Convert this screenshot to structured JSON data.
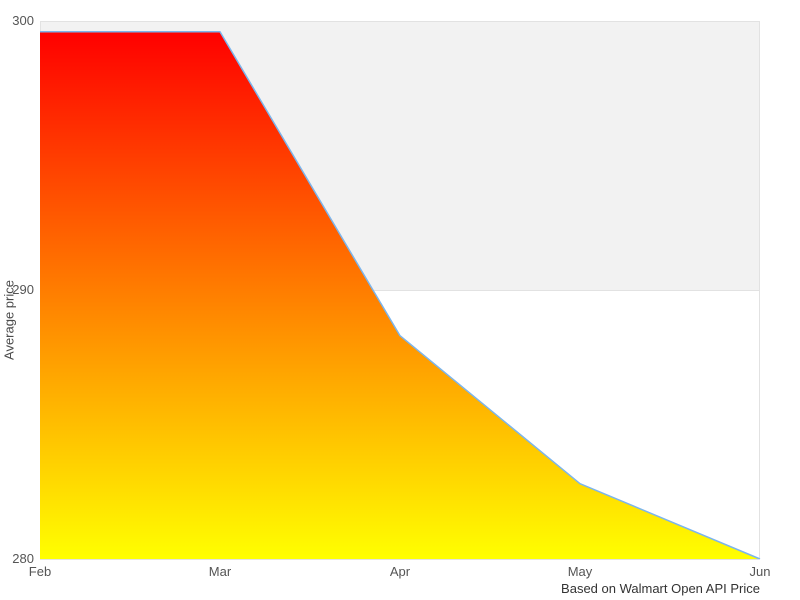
{
  "chart_data": {
    "type": "area",
    "title": "",
    "categories": [
      "Feb",
      "Mar",
      "Apr",
      "May",
      "Jun"
    ],
    "values": [
      299.6,
      299.6,
      288.3,
      282.8,
      280
    ],
    "xlabel": "",
    "ylabel": "Average price",
    "ylim": [
      280,
      300
    ],
    "yticks": [
      280,
      290,
      300
    ],
    "grid": "horizontal",
    "legend": "none",
    "plot_band": {
      "from": 290,
      "to": 300,
      "color": "#f2f2f2"
    },
    "caption": "Based on Walmart Open API Price",
    "colors": {
      "line": "#7cb5ec",
      "gradient_top": "#ff0000",
      "gradient_bottom": "#ffff00",
      "grid": "#e2e2e2",
      "band": "#f2f2f2",
      "axis_label": "#555555",
      "caption": "#333333",
      "background": "#ffffff"
    }
  }
}
